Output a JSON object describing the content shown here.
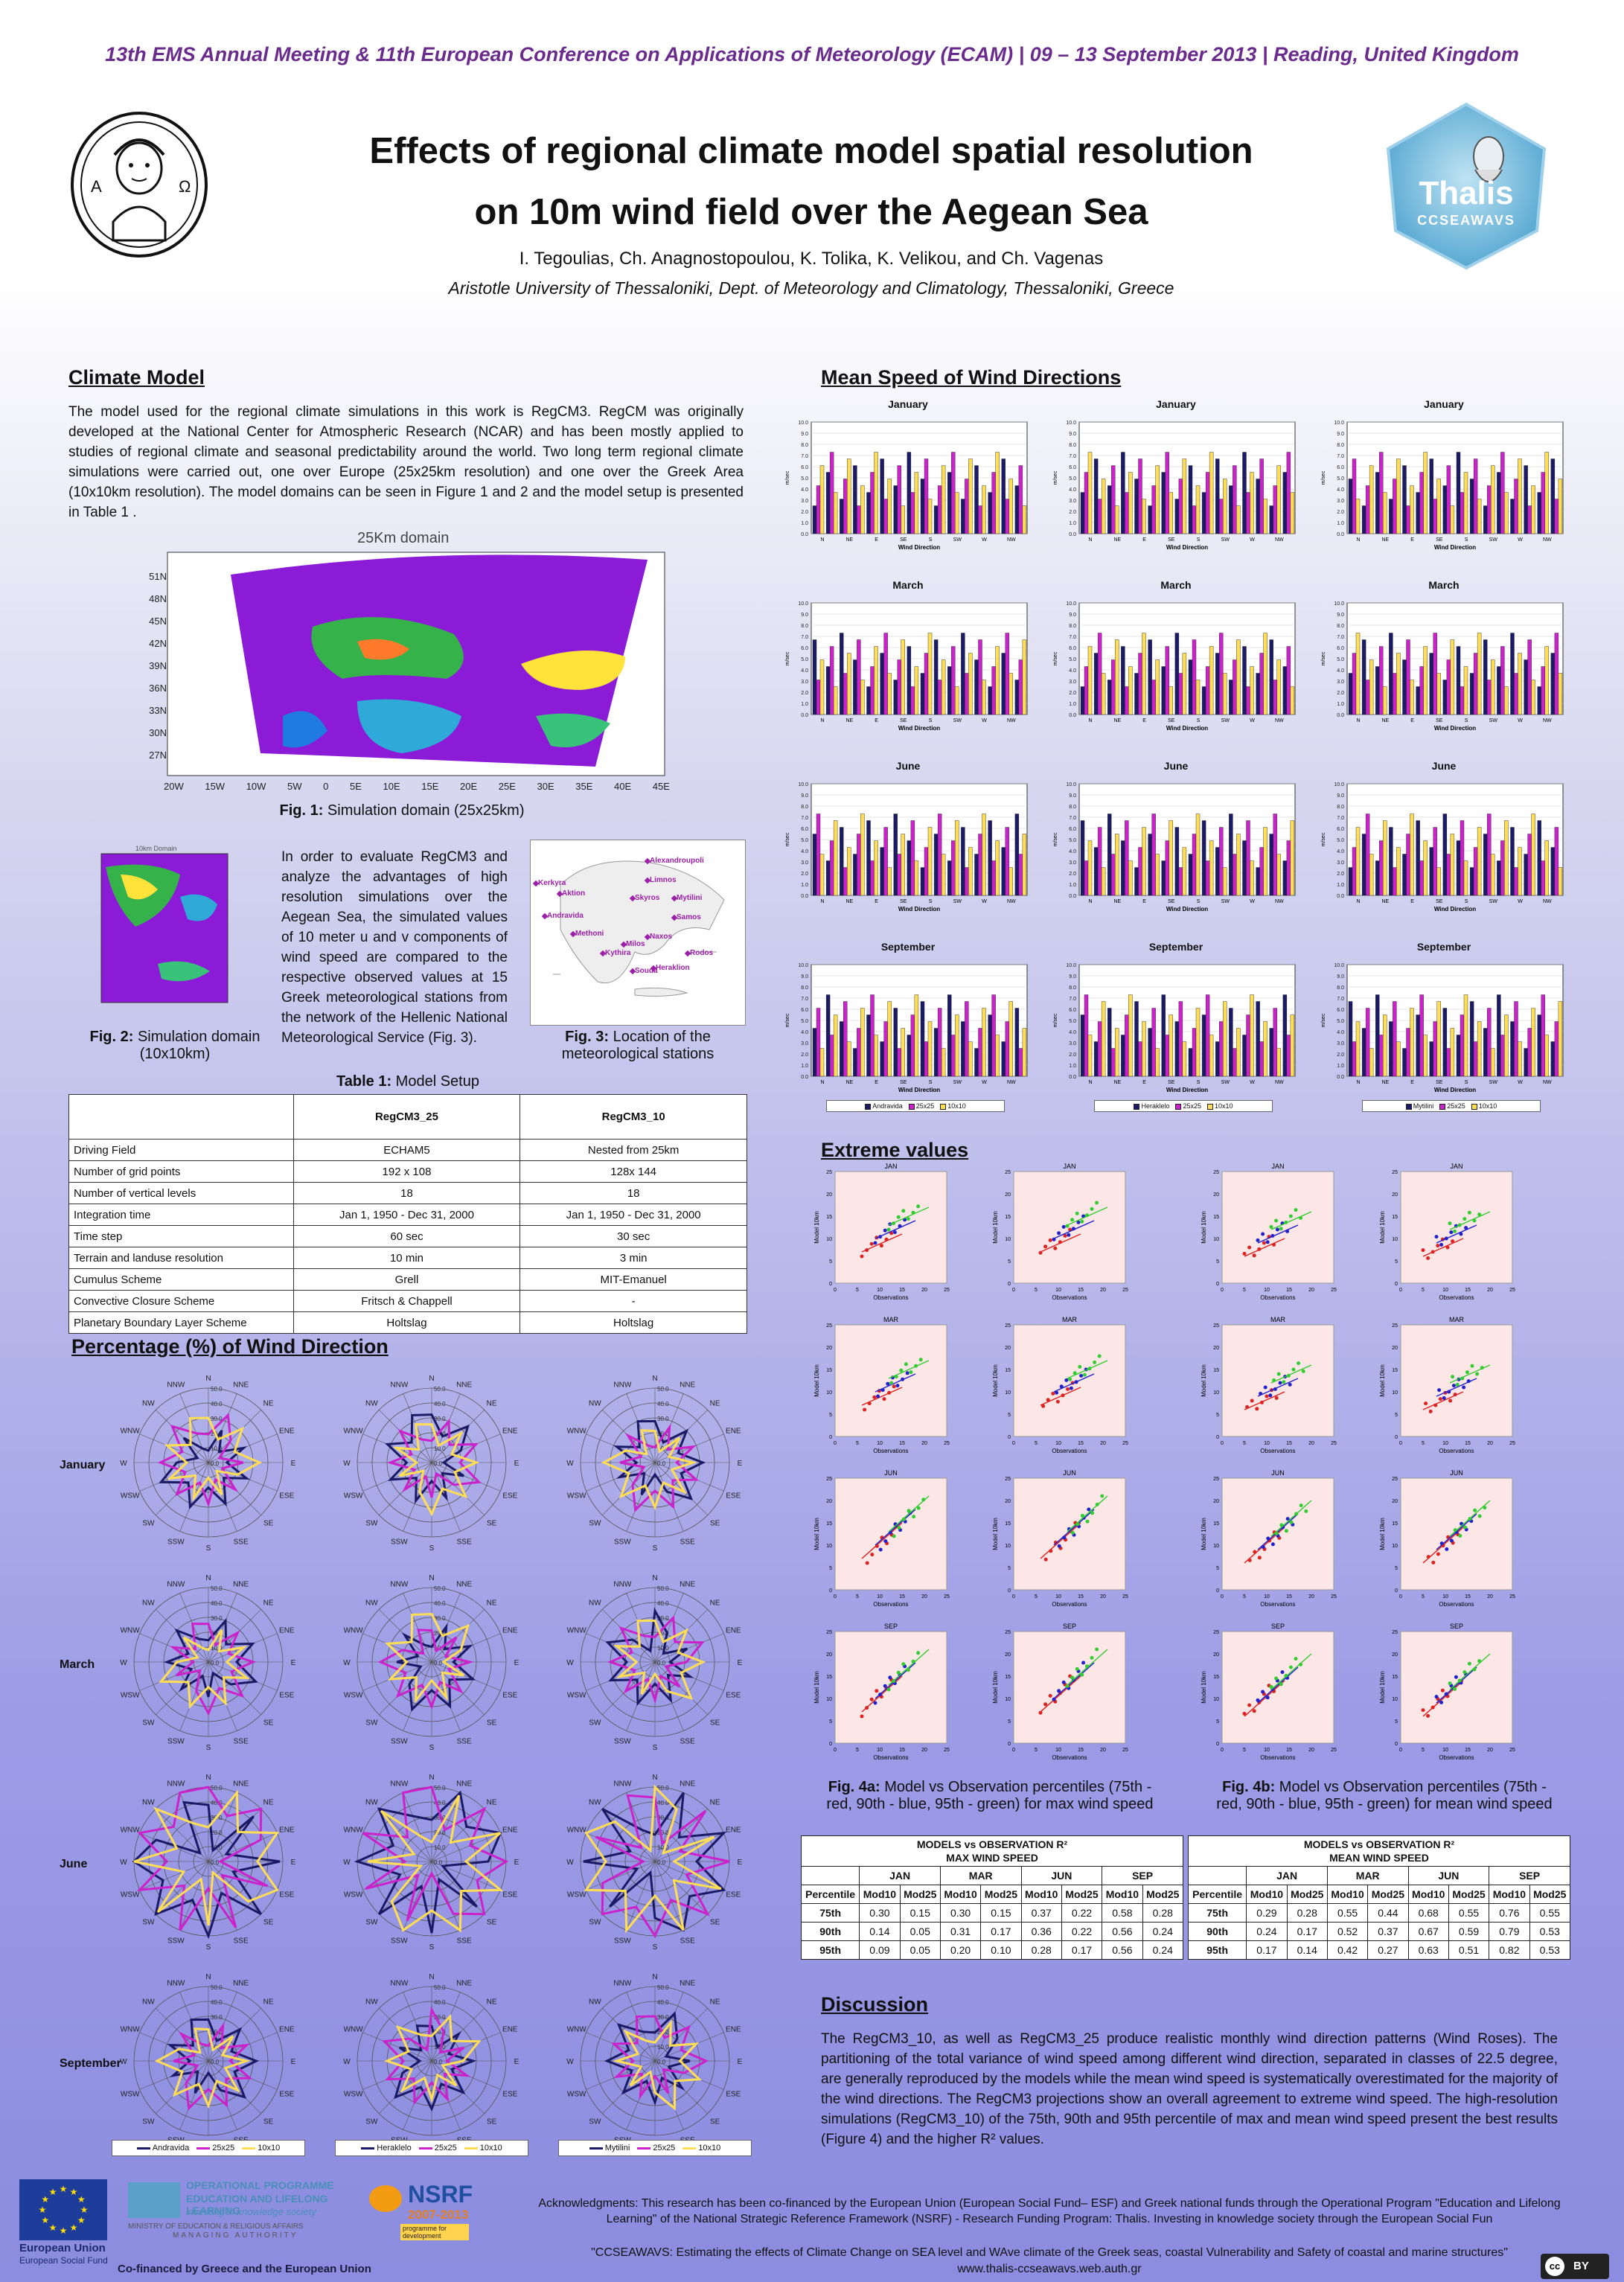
{
  "header": {
    "conference": "13th EMS Annual Meeting & 11th European Conference on Applications of Meteorology (ECAM) | 09 – 13 September 2013 | Reading, United Kingdom",
    "title_line1": "Effects of regional climate model spatial resolution",
    "title_line2": "on 10m wind field over the Aegean Sea",
    "authors": "I. Tegoulias, Ch. Anagnostopoulou, K. Tolika, K. Velikou, and Ch. Vagenas",
    "affiliation": "Aristotle University of Thessaloniki, Dept. of Meteorology and Climatology, Thessaloniki, Greece",
    "thalis_logo_text": "Thalis",
    "thalis_logo_sub": "CCSEAWAVS"
  },
  "climate_model": {
    "heading": "Climate Model",
    "text": "The model used for the regional climate simulations in this work is RegCM3. RegCM was originally developed at the National Center for Atmospheric Research (NCAR) and has been mostly applied to studies of regional climate and seasonal predictability around the world. Two long term regional climate simulations were carried out, one over Europe (25x25km resolution) and one over the Greek Area (10x10km resolution). The model domains can be seen in Figure 1 and 2 and the model setup is presented in Table 1 .",
    "fig1_map_title": "25Km domain",
    "fig1_caption_bold": "Fig. 1:",
    "fig1_caption": " Simulation domain (25x25km)",
    "fig1_lat_labels": [
      "51N",
      "48N",
      "45N",
      "42N",
      "39N",
      "36N",
      "33N",
      "30N",
      "27N"
    ],
    "fig1_lon_labels": [
      "20W",
      "15W",
      "10W",
      "5W",
      "0",
      "5E",
      "10E",
      "15E",
      "20E",
      "25E",
      "30E",
      "35E",
      "40E",
      "45E"
    ],
    "fig2_map_title": "10km Domain",
    "fig2_caption_bold": "Fig. 2:",
    "fig2_caption": " Simulation domain (10x10km)",
    "middle_text": "In order to evaluate RegCM3 and analyze the advantages of high resolution simulations over the Aegean Sea, the simulated values of 10 meter u and v components of wind speed are compared to the respective observed values at 15 Greek meteorological stations from the network of the Hellenic National Meteorological Service (Fig. 3).",
    "fig3_caption_bold": "Fig. 3:",
    "fig3_caption": " Location of the meteorological stations",
    "stations": [
      "Alexandroupoli",
      "Kerkyra",
      "Limnos",
      "Aktion",
      "Skyros",
      "Mytilini",
      "Andravida",
      "Samos",
      "Methoni",
      "Naxos",
      "Milos",
      "Kythira",
      "Rodos",
      "Souda",
      "Heraklion"
    ]
  },
  "table1": {
    "title_bold": "Table 1:",
    "title": " Model Setup",
    "col_headers": [
      "",
      "RegCM3_25",
      "RegCM3_10"
    ],
    "rows": [
      [
        "Driving Field",
        "ECHAM5",
        "Nested from 25km"
      ],
      [
        "Number of grid points",
        "192 x 108",
        "128x 144"
      ],
      [
        "Number of vertical levels",
        "18",
        "18"
      ],
      [
        "Integration time",
        "Jan 1, 1950 - Dec 31, 2000",
        "Jan 1, 1950 - Dec 31, 2000"
      ],
      [
        "Time step",
        "60 sec",
        "30 sec"
      ],
      [
        "Terrain and landuse resolution",
        "10 min",
        "3 min"
      ],
      [
        "Cumulus Scheme",
        "Grell",
        "MIT-Emanuel"
      ],
      [
        "Convective Closure Scheme",
        "Fritsch & Chappell",
        "-"
      ],
      [
        "Planetary Boundary Layer Scheme",
        "Holtslag",
        "Holtslag"
      ]
    ]
  },
  "wind_direction": {
    "heading": "Percentage (%) of Wind Direction",
    "months": [
      "January",
      "March",
      "June",
      "September"
    ],
    "directions": [
      "N",
      "NNE",
      "NE",
      "ENE",
      "E",
      "ESE",
      "SE",
      "SSE",
      "S",
      "SSW",
      "SW",
      "WSW",
      "W",
      "WNW",
      "NW",
      "NNW"
    ],
    "ring_labels": [
      "50.0",
      "40.0",
      "30.0",
      "20.0",
      "10.0",
      "0.0"
    ],
    "legend_columns": [
      [
        "Andravida",
        "25x25",
        "10x10"
      ],
      [
        "Heraklelo",
        "25x25",
        "10x10"
      ],
      [
        "Mytilini",
        "25x25",
        "10x10"
      ]
    ]
  },
  "mean_speed": {
    "heading": "Mean Speed of Wind Directions",
    "months": [
      "January",
      "March",
      "June",
      "September"
    ],
    "x_labels": [
      "N",
      "NE",
      "E",
      "SE",
      "S",
      "SW",
      "W",
      "NW"
    ],
    "y_ticks": [
      "10.0",
      "9.0",
      "8.0",
      "7.0",
      "6.0",
      "5.0",
      "4.0",
      "3.0",
      "2.0",
      "1.0",
      "0.0"
    ],
    "y_label": "m/sec",
    "x_label": "Wind Direction",
    "legend_columns": [
      [
        "Andravida",
        "25x25",
        "10x10"
      ],
      [
        "Heraklelo",
        "25x25",
        "10x10"
      ],
      [
        "Mytilini",
        "25x25",
        "10x10"
      ]
    ]
  },
  "extreme": {
    "heading": "Extreme values",
    "months": [
      "JAN",
      "MAR",
      "JUN",
      "SEP"
    ],
    "x_label": "Observations",
    "y_label": "Model 10km",
    "fig4a_bold": "Fig. 4a:",
    "fig4a": " Model vs Observation percentiles (75th - red, 90th - blue, 95th - green) for max wind speed",
    "fig4b_bold": "Fig. 4b:",
    "fig4b": " Model vs Observation percentiles (75th - red, 90th - blue, 95th - green) for mean wind speed"
  },
  "r2_max": {
    "title1": "MODELS vs OBSERVATION R²",
    "title2": "MAX WIND SPEED",
    "months": [
      "JAN",
      "MAR",
      "JUN",
      "SEP"
    ],
    "sub": [
      "Percentile",
      "Mod10",
      "Mod25",
      "Mod10",
      "Mod25",
      "Mod10",
      "Mod25",
      "Mod10",
      "Mod25"
    ],
    "rows": [
      [
        "75th",
        "0.30",
        "0.15",
        "0.30",
        "0.15",
        "0.37",
        "0.22",
        "0.58",
        "0.28"
      ],
      [
        "90th",
        "0.14",
        "0.05",
        "0.31",
        "0.17",
        "0.36",
        "0.22",
        "0.56",
        "0.24"
      ],
      [
        "95th",
        "0.09",
        "0.05",
        "0.20",
        "0.10",
        "0.28",
        "0.17",
        "0.56",
        "0.24"
      ]
    ]
  },
  "r2_mean": {
    "title1": "MODELS vs OBSERVATION R²",
    "title2": "MEAN WIND SPEED",
    "months": [
      "JAN",
      "MAR",
      "JUN",
      "SEP"
    ],
    "sub": [
      "Percentile",
      "Mod10",
      "Mod25",
      "Mod10",
      "Mod25",
      "Mod10",
      "Mod25",
      "Mod10",
      "Mod25"
    ],
    "rows": [
      [
        "75th",
        "0.29",
        "0.28",
        "0.55",
        "0.44",
        "0.68",
        "0.55",
        "0.76",
        "0.55"
      ],
      [
        "90th",
        "0.24",
        "0.17",
        "0.52",
        "0.37",
        "0.67",
        "0.59",
        "0.79",
        "0.53"
      ],
      [
        "95th",
        "0.17",
        "0.14",
        "0.42",
        "0.27",
        "0.63",
        "0.51",
        "0.82",
        "0.53"
      ]
    ]
  },
  "discussion": {
    "heading": "Discussion",
    "text": "The RegCM3_10, as well as RegCM3_25 produce realistic monthly wind direction patterns (Wind Roses). The partitioning of the total variance of wind speed among different wind direction, separated in classes of 22.5 degree, are generally reproduced by the models while the mean wind speed is systematically overestimated for the majority of the wind directions. The RegCM3 projections show an overall agreement to extreme wind speed. The high-resolution simulations (RegCM3_10) of the 75th, 90th and 95th percentile of max and mean wind speed present the best results (Figure 4) and the higher R² values."
  },
  "footer": {
    "eu_label1": "European Union",
    "eu_label2": "European Social Fund",
    "edu_line1": "OPERATIONAL PROGRAMME",
    "edu_line2": "EDUCATION AND LIFELONG LEARNING",
    "edu_line3": "investing in knowledge society",
    "ministry": "MINISTRY OF EDUCATION & RELIGIOUS AFFAIRS",
    "managing": "MANAGING AUTHORITY",
    "nsrf": "NSRF",
    "nsrf_years": "2007-2013",
    "nsrf_sub": "programme for development",
    "cofinanced": "Co-financed by Greece and the European Union",
    "ack": "Acknowledgments: This research has been co-financed by the European Union (European Social Fund– ESF) and Greek national funds through the Operational Program \"Education and Lifelong Learning\" of the National Strategic Reference Framework (NSRF) - Research Funding Program: Thalis. Investing in knowledge society through the European Social Fun",
    "project": "\"CCSEAWAVS: Estimating the effects of Climate Change on SEA level and WAve climate of the Greek seas, coastal Vulnerability and Safety of coastal and marine structures\"",
    "url": "www.thalis-ccseawavs.web.auth.gr",
    "cc": "cc",
    "by": "BY"
  },
  "colors": {
    "purple_title": "#6a2c8c",
    "station": "#1a1a66",
    "mod25": "#cc22cc",
    "mod10": "#ffdd55",
    "p75": "#dd2222",
    "p90": "#2222cc",
    "p95": "#33cc33"
  }
}
